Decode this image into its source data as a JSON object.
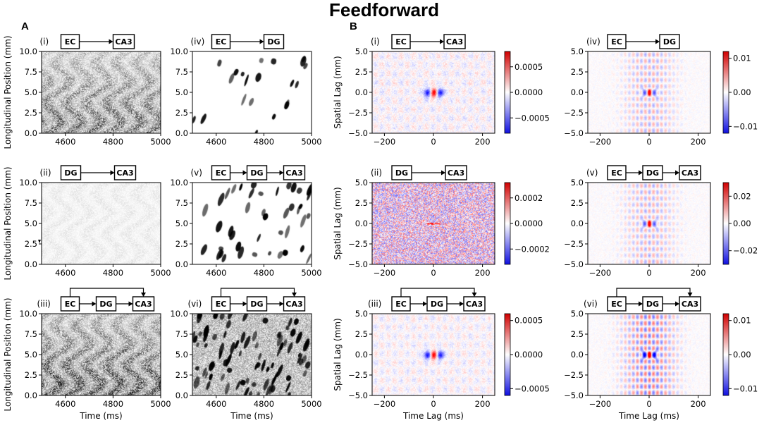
{
  "figure": {
    "title": "Feedforward",
    "panel_a_label": "A",
    "panel_b_label": "B"
  },
  "colors": {
    "spike": "#000000",
    "positive": "#d10000",
    "negative": "#1010e0",
    "neutral": "#ffffff"
  },
  "chart_data": [
    {
      "id": "A-i",
      "type": "heatmap",
      "panel": "A",
      "roman": "(i)",
      "diagram": {
        "nodes": [
          "EC",
          "CA3"
        ],
        "bypass": false
      },
      "title": "EC → CA3",
      "xlabel": "",
      "ylabel": "Longitudinal Position (mm)",
      "xlim": [
        4500,
        5000
      ],
      "ylim": [
        0,
        10
      ],
      "xticks": [
        4600,
        4800,
        5000
      ],
      "yticks": [
        0.0,
        2.5,
        5.0,
        7.5,
        10.0
      ],
      "pattern": "dense-noise",
      "density": 0.55
    },
    {
      "id": "A-iv",
      "type": "heatmap",
      "panel": "A",
      "roman": "(iv)",
      "diagram": {
        "nodes": [
          "EC",
          "DG"
        ],
        "bypass": false
      },
      "title": "EC → DG",
      "xlabel": "",
      "ylabel": "",
      "xlim": [
        4500,
        5000
      ],
      "ylim": [
        0,
        10
      ],
      "xticks": [
        4600,
        4800,
        5000
      ],
      "yticks": [
        0.0,
        2.5,
        5.0,
        7.5,
        10.0
      ],
      "pattern": "sparse-streaks",
      "density": 0.15
    },
    {
      "id": "A-ii",
      "type": "heatmap",
      "panel": "A",
      "roman": "(ii)",
      "diagram": {
        "nodes": [
          "DG",
          "CA3"
        ],
        "bypass": false
      },
      "title": "DG → CA3",
      "xlabel": "",
      "ylabel": "Longitudinal Position (mm)",
      "xlim": [
        4500,
        5000
      ],
      "ylim": [
        0,
        10
      ],
      "xticks": [
        4600,
        4800,
        5000
      ],
      "yticks": [
        0.0,
        2.5,
        5.0,
        7.5,
        10.0
      ],
      "pattern": "faint-noise",
      "density": 0.15
    },
    {
      "id": "A-v",
      "type": "heatmap",
      "panel": "A",
      "roman": "(v)",
      "diagram": {
        "nodes": [
          "EC",
          "DG",
          "CA3"
        ],
        "bypass": false
      },
      "title": "EC → DG → CA3",
      "xlabel": "",
      "ylabel": "",
      "xlim": [
        4500,
        5000
      ],
      "ylim": [
        0,
        10
      ],
      "xticks": [
        4600,
        4800,
        5000
      ],
      "yticks": [
        0.0,
        2.5,
        5.0,
        7.5,
        10.0
      ],
      "pattern": "sparse-streaks",
      "density": 0.3
    },
    {
      "id": "A-iii",
      "type": "heatmap",
      "panel": "A",
      "roman": "(iii)",
      "diagram": {
        "nodes": [
          "EC",
          "DG",
          "CA3"
        ],
        "bypass": true
      },
      "title": "EC + DG → CA3",
      "xlabel": "Time (ms)",
      "ylabel": "Longitudinal Position (mm)",
      "xlim": [
        4500,
        5000
      ],
      "ylim": [
        0,
        10
      ],
      "xticks": [
        4600,
        4800,
        5000
      ],
      "yticks": [
        0.0,
        2.5,
        5.0,
        7.5,
        10.0
      ],
      "pattern": "dense-noise",
      "density": 0.65
    },
    {
      "id": "A-vi",
      "type": "heatmap",
      "panel": "A",
      "roman": "(vi)",
      "diagram": {
        "nodes": [
          "EC",
          "DG",
          "CA3"
        ],
        "bypass": true
      },
      "title": "EC → DG → CA3 with bypass",
      "xlabel": "Time (ms)",
      "ylabel": "",
      "xlim": [
        4500,
        5000
      ],
      "ylim": [
        0,
        10
      ],
      "xticks": [
        4600,
        4800,
        5000
      ],
      "yticks": [
        0.0,
        2.5,
        5.0,
        7.5,
        10.0
      ],
      "pattern": "dense-streaks",
      "density": 0.6
    },
    {
      "id": "B-i",
      "type": "heatmap",
      "panel": "B",
      "roman": "(i)",
      "diagram": {
        "nodes": [
          "EC",
          "CA3"
        ],
        "bypass": false
      },
      "xlabel": "",
      "ylabel": "Spatial Lag (mm)",
      "xlim": [
        -250,
        250
      ],
      "ylim": [
        -5,
        5
      ],
      "xticks": [
        -200,
        0,
        200
      ],
      "yticks": [
        -5.0,
        -2.5,
        0.0,
        2.5,
        5.0
      ],
      "colorbar": {
        "range": [
          -0.0008,
          0.0008
        ],
        "ticks": [
          -0.0005,
          0.0,
          0.0005
        ],
        "labels": [
          "−0.0005",
          "0.0000",
          "0.0005"
        ]
      },
      "pattern": "dipole",
      "noise": 0.12
    },
    {
      "id": "B-iv",
      "type": "heatmap",
      "panel": "B",
      "roman": "(iv)",
      "diagram": {
        "nodes": [
          "EC",
          "DG"
        ],
        "bypass": false
      },
      "xlabel": "",
      "ylabel": "",
      "xlim": [
        -250,
        250
      ],
      "ylim": [
        -5,
        5
      ],
      "xticks": [
        -200,
        0,
        200
      ],
      "yticks": [
        -5.0,
        -2.5,
        0.0,
        2.5,
        5.0
      ],
      "colorbar": {
        "range": [
          -0.012,
          0.012
        ],
        "ticks": [
          -0.01,
          0.0,
          0.01
        ],
        "labels": [
          "−0.01",
          "0.00",
          "0.01"
        ]
      },
      "pattern": "ripple",
      "noise": 0.05
    },
    {
      "id": "B-ii",
      "type": "heatmap",
      "panel": "B",
      "roman": "(ii)",
      "diagram": {
        "nodes": [
          "DG",
          "CA3"
        ],
        "bypass": false
      },
      "xlabel": "",
      "ylabel": "Spatial Lag (mm)",
      "xlim": [
        -250,
        250
      ],
      "ylim": [
        -5,
        5
      ],
      "xticks": [
        -200,
        0,
        200
      ],
      "yticks": [
        -5.0,
        -2.5,
        0.0,
        2.5,
        5.0
      ],
      "colorbar": {
        "range": [
          -0.00032,
          0.00032
        ],
        "ticks": [
          -0.0002,
          0.0,
          0.0002
        ],
        "labels": [
          "−0.0002",
          "0.0000",
          "0.0002"
        ]
      },
      "pattern": "noise-line",
      "noise": 0.6
    },
    {
      "id": "B-v",
      "type": "heatmap",
      "panel": "B",
      "roman": "(v)",
      "diagram": {
        "nodes": [
          "EC",
          "DG",
          "CA3"
        ],
        "bypass": false
      },
      "xlabel": "",
      "ylabel": "",
      "xlim": [
        -250,
        250
      ],
      "ylim": [
        -5,
        5
      ],
      "xticks": [
        -200,
        0,
        200
      ],
      "yticks": [
        -5.0,
        -2.5,
        0.0,
        2.5,
        5.0
      ],
      "colorbar": {
        "range": [
          -0.03,
          0.03
        ],
        "ticks": [
          -0.02,
          0.0,
          0.02
        ],
        "labels": [
          "−0.02",
          "0.00",
          "0.02"
        ]
      },
      "pattern": "ripple",
      "noise": 0.05
    },
    {
      "id": "B-iii",
      "type": "heatmap",
      "panel": "B",
      "roman": "(iii)",
      "diagram": {
        "nodes": [
          "EC",
          "DG",
          "CA3"
        ],
        "bypass": true
      },
      "xlabel": "Time Lag (ms)",
      "ylabel": "Spatial Lag (mm)",
      "xlim": [
        -250,
        250
      ],
      "ylim": [
        -5,
        5
      ],
      "xticks": [
        -200,
        0,
        200
      ],
      "yticks": [
        -5.0,
        -2.5,
        0.0,
        2.5,
        5.0
      ],
      "colorbar": {
        "range": [
          -0.0006,
          0.0006
        ],
        "ticks": [
          -0.0005,
          0.0,
          0.0005
        ],
        "labels": [
          "−0.0005",
          "0.0000",
          "0.0005"
        ]
      },
      "pattern": "dipole",
      "noise": 0.1
    },
    {
      "id": "B-vi",
      "type": "heatmap",
      "panel": "B",
      "roman": "(vi)",
      "diagram": {
        "nodes": [
          "EC",
          "DG",
          "CA3"
        ],
        "bypass": true
      },
      "xlabel": "Time Lag (ms)",
      "ylabel": "",
      "xlim": [
        -250,
        250
      ],
      "ylim": [
        -5,
        5
      ],
      "xticks": [
        -200,
        0,
        200
      ],
      "yticks": [
        -5.0,
        -2.5,
        0.0,
        2.5,
        5.0
      ],
      "colorbar": {
        "range": [
          -0.012,
          0.012
        ],
        "ticks": [
          -0.01,
          0.0,
          0.01
        ],
        "labels": [
          "−0.01",
          "0.00",
          "0.01"
        ]
      },
      "pattern": "ripple-strong",
      "noise": 0.05
    }
  ]
}
